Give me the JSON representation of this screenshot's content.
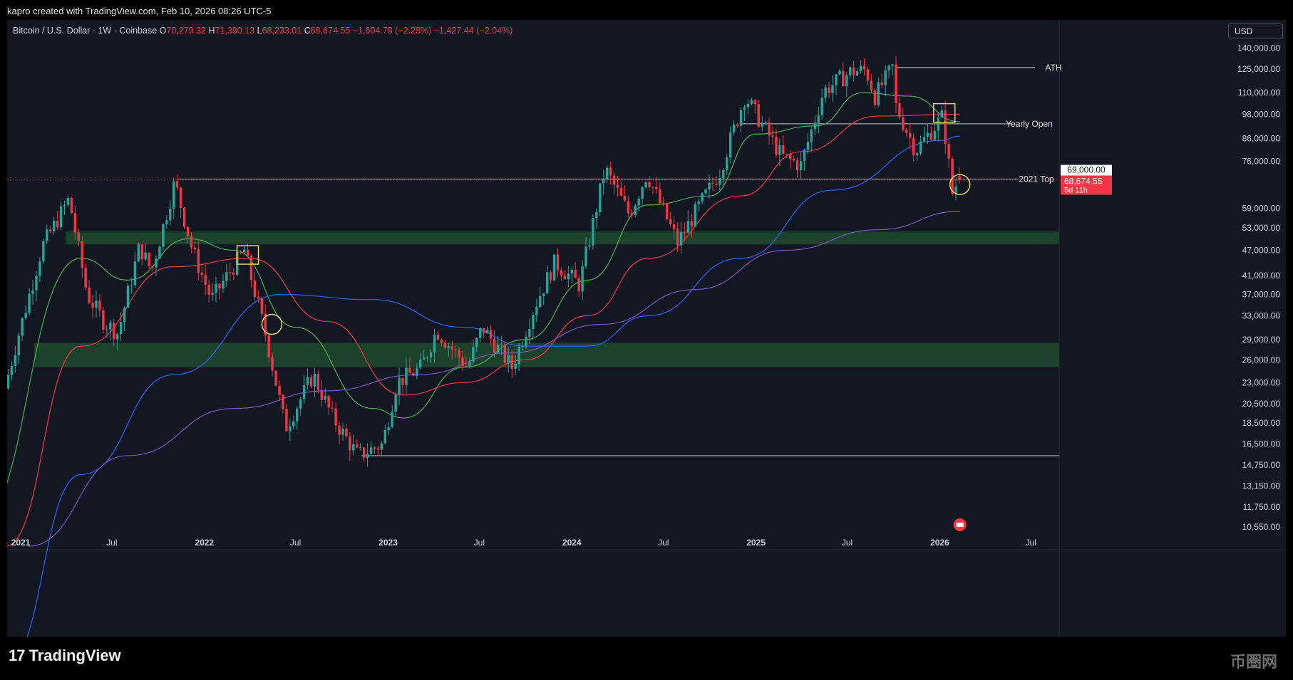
{
  "header": {
    "attribution": "kapro created with TradingView.com, Feb 10, 2026 08:26 UTC-5"
  },
  "legend": {
    "symbol": "Bitcoin / U.S. Dollar · 1W · Coinbase",
    "o_label": "O",
    "o_value": "70,279.32",
    "h_label": "H",
    "h_value": "71,380.13",
    "l_label": "L",
    "l_value": "68,233.01",
    "c_label": "C",
    "c_value": "68,674.55",
    "change": "−1,604.78 (−2.28%)",
    "change2": "−1,427.44 (−2.04%)"
  },
  "currency": "USD",
  "price_tags": {
    "level": "69,000.00",
    "last": "68,674.55",
    "countdown": "5d 11h"
  },
  "colors": {
    "up": "#26a69a",
    "down": "#f23645",
    "ma_green": "#4caf50",
    "ma_red": "#f23645",
    "ma_blue": "#2962ff",
    "ma_purple": "#7e57c2",
    "zone": "#1f4a2e",
    "highlight": "#f0e35a"
  },
  "footer": {
    "brand": "TradingView",
    "watermark": "币圈网"
  },
  "chart_data": {
    "type": "candlestick",
    "interval": "1W",
    "y_scale": "log",
    "ylim": [
      10000,
      160000
    ],
    "x_ticks": [
      "2021",
      "Jul",
      "2022",
      "Jul",
      "2023",
      "Jul",
      "2024",
      "Jul",
      "2025",
      "Jul",
      "2026",
      "Jul"
    ],
    "y_ticks": [
      140000,
      125000,
      110000,
      98000,
      86000,
      76000,
      59000,
      53000,
      47000,
      41000,
      37000,
      33000,
      29000,
      26000,
      23000,
      20500,
      18500,
      16500,
      14750,
      13150,
      11750,
      10550
    ],
    "y_tick_labels": [
      "140,000.00",
      "125,000.00",
      "110,000.00",
      "98,000.00",
      "86,000.00",
      "76,000.00",
      "59,000.00",
      "53,000.00",
      "47,000.00",
      "41,000.00",
      "37,000.00",
      "33,000.00",
      "29,000.00",
      "26,000.00",
      "23,000.00",
      "20,500.00",
      "18,500.00",
      "16,500.00",
      "14,750.00",
      "13,150.00",
      "11,750.00",
      "10,550.00"
    ],
    "price_path": [
      [
        "2020-10-01",
        11000
      ],
      [
        "2021-01-01",
        29000
      ],
      [
        "2021-02-20",
        48000
      ],
      [
        "2021-04-14",
        62000
      ],
      [
        "2021-05-20",
        37000
      ],
      [
        "2021-06-22",
        32000
      ],
      [
        "2021-07-20",
        30000
      ],
      [
        "2021-09-01",
        48000
      ],
      [
        "2021-09-25",
        42000
      ],
      [
        "2021-11-10",
        68000
      ],
      [
        "2021-12-15",
        47000
      ],
      [
        "2022-01-22",
        36000
      ],
      [
        "2022-03-28",
        47000
      ],
      [
        "2022-05-12",
        29000
      ],
      [
        "2022-06-18",
        18000
      ],
      [
        "2022-08-12",
        24000
      ],
      [
        "2022-09-20",
        19000
      ],
      [
        "2022-11-09",
        15500
      ],
      [
        "2022-12-28",
        16500
      ],
      [
        "2023-01-25",
        23000
      ],
      [
        "2023-03-15",
        25000
      ],
      [
        "2023-04-14",
        30500
      ],
      [
        "2023-06-15",
        25000
      ],
      [
        "2023-07-14",
        31000
      ],
      [
        "2023-09-11",
        25000
      ],
      [
        "2023-10-25",
        34500
      ],
      [
        "2023-12-05",
        44000
      ],
      [
        "2024-01-23",
        39000
      ],
      [
        "2024-03-14",
        73000
      ],
      [
        "2024-05-01",
        57000
      ],
      [
        "2024-06-05",
        71000
      ],
      [
        "2024-08-05",
        49000
      ],
      [
        "2024-10-28",
        72000
      ],
      [
        "2024-12-17",
        108000
      ],
      [
        "2025-02-28",
        78000
      ],
      [
        "2025-04-07",
        74500
      ],
      [
        "2025-05-22",
        111000
      ],
      [
        "2025-07-14",
        123000
      ],
      [
        "2025-08-14",
        124500
      ],
      [
        "2025-09-01",
        108000
      ],
      [
        "2025-10-06",
        126000
      ],
      [
        "2025-10-10",
        104000
      ],
      [
        "2025-11-21",
        80500
      ],
      [
        "2026-01-14",
        97000
      ],
      [
        "2026-02-05",
        60000
      ],
      [
        "2026-02-10",
        68674.55
      ]
    ],
    "ohlc_last": {
      "open": 70279.32,
      "high": 71380.13,
      "low": 68233.01,
      "close": 68674.55
    },
    "moving_averages": [
      {
        "color": "green",
        "points": [
          [
            "2020-10-01",
            10500
          ],
          [
            "2021-05-01",
            45000
          ],
          [
            "2021-08-01",
            40000
          ],
          [
            "2021-12-01",
            50000
          ],
          [
            "2022-03-01",
            47000
          ],
          [
            "2022-07-01",
            31000
          ],
          [
            "2022-12-01",
            20000
          ],
          [
            "2023-02-01",
            19000
          ],
          [
            "2023-06-01",
            25000
          ],
          [
            "2023-10-01",
            29000
          ],
          [
            "2024-02-01",
            40000
          ],
          [
            "2024-06-01",
            60000
          ],
          [
            "2024-10-01",
            63000
          ],
          [
            "2025-01-01",
            88000
          ],
          [
            "2025-05-01",
            92000
          ],
          [
            "2025-08-01",
            110000
          ],
          [
            "2025-11-01",
            108000
          ],
          [
            "2026-02-10",
            94000
          ]
        ]
      },
      {
        "color": "red",
        "points": [
          [
            "2020-12-01",
            9500
          ],
          [
            "2021-05-01",
            28000
          ],
          [
            "2021-11-01",
            43000
          ],
          [
            "2022-04-01",
            45000
          ],
          [
            "2022-09-01",
            32000
          ],
          [
            "2023-02-01",
            21500
          ],
          [
            "2023-06-01",
            23000
          ],
          [
            "2023-10-01",
            26000
          ],
          [
            "2024-02-01",
            33000
          ],
          [
            "2024-06-01",
            45000
          ],
          [
            "2024-12-01",
            63000
          ],
          [
            "2025-04-01",
            80000
          ],
          [
            "2025-09-01",
            97000
          ],
          [
            "2026-02-10",
            98000
          ]
        ]
      },
      {
        "color": "blue",
        "points": [
          [
            "2020-12-01",
            5000
          ],
          [
            "2021-05-01",
            14000
          ],
          [
            "2021-11-01",
            24000
          ],
          [
            "2022-06-01",
            37000
          ],
          [
            "2022-12-01",
            36000
          ],
          [
            "2023-06-01",
            31000
          ],
          [
            "2023-10-01",
            28000
          ],
          [
            "2024-02-01",
            28000
          ],
          [
            "2024-06-01",
            33000
          ],
          [
            "2024-12-01",
            45000
          ],
          [
            "2025-06-01",
            65000
          ],
          [
            "2026-01-01",
            85000
          ],
          [
            "2026-02-10",
            87000
          ]
        ]
      },
      {
        "color": "purple",
        "points": [
          [
            "2021-01-15",
            9500
          ],
          [
            "2021-08-01",
            15500
          ],
          [
            "2022-03-01",
            20000
          ],
          [
            "2022-09-01",
            22000
          ],
          [
            "2023-03-01",
            24000
          ],
          [
            "2023-09-01",
            27000
          ],
          [
            "2024-03-01",
            31500
          ],
          [
            "2024-09-01",
            38000
          ],
          [
            "2025-03-01",
            47000
          ],
          [
            "2025-09-01",
            52500
          ],
          [
            "2026-02-10",
            58000
          ]
        ]
      }
    ],
    "zones": [
      {
        "from": 48500,
        "to": 52000
      },
      {
        "from": 25000,
        "to": 28500
      }
    ],
    "levels": [
      {
        "label": "ATH",
        "value": 126000,
        "from": "2025-10-06"
      },
      {
        "label": "Yearly Open",
        "value": 93000,
        "from": "2024-12-01"
      },
      {
        "label": "2021 Top",
        "value": 69000,
        "from": "2021-11-10"
      },
      {
        "label": "",
        "value": 15500,
        "from": "2022-11-09"
      }
    ],
    "annotations": [
      {
        "shape": "rect",
        "date": "2022-03-28",
        "value": 46000
      },
      {
        "shape": "circle",
        "date": "2022-05-15",
        "value": 31500
      },
      {
        "shape": "rect",
        "date": "2026-01-10",
        "value": 99000
      },
      {
        "shape": "circle",
        "date": "2026-02-10",
        "value": 67000
      }
    ]
  }
}
